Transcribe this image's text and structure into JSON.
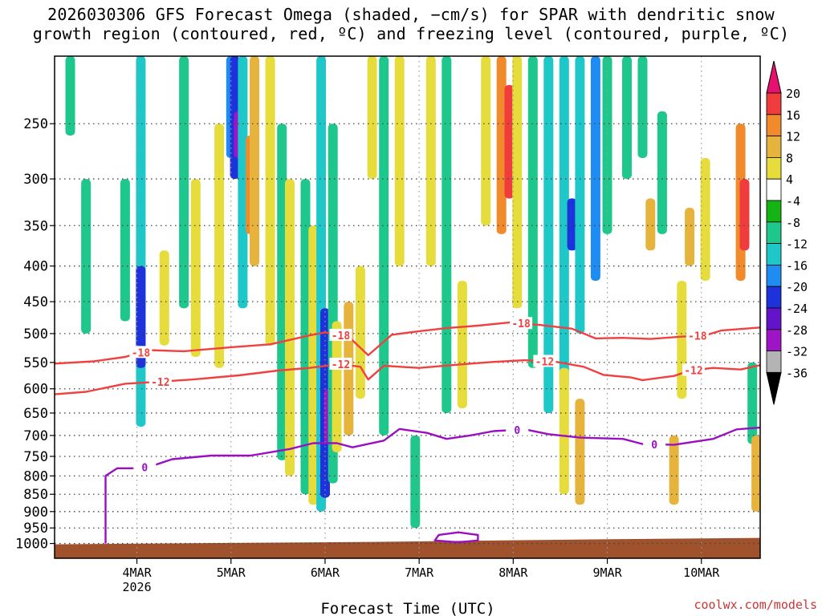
{
  "title": {
    "line1": "2026030306 GFS Forecast Omega (shaded, −cm/s) for SPAR with dendritic snow",
    "line2": "growth region (contoured, red, ºC) and freezing level (contoured, purple, ºC)"
  },
  "credit": "coolwx.com/models",
  "chart_data": {
    "type": "heatmap",
    "xlabel": "Forecast Time (UTC)",
    "ylabel": "",
    "x_range_hours": [
      0,
      180
    ],
    "x_ticks": [
      {
        "hour": 21,
        "label": "4MAR",
        "sublabel": "2026"
      },
      {
        "hour": 45,
        "label": "5MAR",
        "sublabel": ""
      },
      {
        "hour": 69,
        "label": "6MAR",
        "sublabel": ""
      },
      {
        "hour": 93,
        "label": "7MAR",
        "sublabel": ""
      },
      {
        "hour": 117,
        "label": "8MAR",
        "sublabel": ""
      },
      {
        "hour": 141,
        "label": "9MAR",
        "sublabel": ""
      },
      {
        "hour": 165,
        "label": "10MAR",
        "sublabel": ""
      }
    ],
    "y_range_hPa": [
      1050,
      200
    ],
    "y_ticks": [
      250,
      300,
      350,
      400,
      450,
      500,
      550,
      600,
      650,
      700,
      750,
      800,
      850,
      900,
      950,
      1000
    ],
    "colorbar": {
      "labels": [
        "20",
        "16",
        "12",
        "8",
        "4",
        "-4",
        "-8",
        "-12",
        "-16",
        "-20",
        "-24",
        "-28",
        "-32",
        "-36"
      ],
      "colors": [
        "#e8106e",
        "#f03c3c",
        "#f08a2a",
        "#e6b43c",
        "#e6dc3c",
        "#ffffff",
        "#14b414",
        "#1ec88c",
        "#1ec8c8",
        "#1e8cf0",
        "#1e32dc",
        "#6414c8",
        "#a014c8",
        "#b4b4b4",
        "#000000"
      ]
    },
    "omega_cells": [
      {
        "h": 22,
        "p_top": 200,
        "p_bot": 680,
        "v": -12
      },
      {
        "h": 22,
        "p_top": 400,
        "p_bot": 560,
        "v": -20
      },
      {
        "h": 18,
        "p_top": 300,
        "p_bot": 480,
        "v": -8
      },
      {
        "h": 28,
        "p_top": 380,
        "p_bot": 520,
        "v": 6
      },
      {
        "h": 33,
        "p_top": 200,
        "p_bot": 460,
        "v": -8
      },
      {
        "h": 36,
        "p_top": 300,
        "p_bot": 540,
        "v": 6
      },
      {
        "h": 42,
        "p_top": 250,
        "p_bot": 560,
        "v": 6
      },
      {
        "h": 45,
        "p_top": 200,
        "p_bot": 280,
        "v": -16
      },
      {
        "h": 46,
        "p_top": 200,
        "p_bot": 300,
        "v": -20
      },
      {
        "h": 47,
        "p_top": 240,
        "p_bot": 280,
        "v": -28
      },
      {
        "h": 48,
        "p_top": 200,
        "p_bot": 460,
        "v": -12
      },
      {
        "h": 50,
        "p_top": 260,
        "p_bot": 360,
        "v": 14
      },
      {
        "h": 51,
        "p_top": 200,
        "p_bot": 400,
        "v": 8
      },
      {
        "h": 55,
        "p_top": 200,
        "p_bot": 520,
        "v": 6
      },
      {
        "h": 58,
        "p_top": 250,
        "p_bot": 760,
        "v": -8
      },
      {
        "h": 60,
        "p_top": 300,
        "p_bot": 800,
        "v": 6
      },
      {
        "h": 64,
        "p_top": 300,
        "p_bot": 850,
        "v": -10
      },
      {
        "h": 66,
        "p_top": 350,
        "p_bot": 880,
        "v": 6
      },
      {
        "h": 68,
        "p_top": 200,
        "p_bot": 900,
        "v": -12
      },
      {
        "h": 69,
        "p_top": 460,
        "p_bot": 860,
        "v": -20
      },
      {
        "h": 70,
        "p_top": 600,
        "p_bot": 720,
        "v": -28
      },
      {
        "h": 71,
        "p_top": 250,
        "p_bot": 820,
        "v": -10
      },
      {
        "h": 72,
        "p_top": 480,
        "p_bot": 740,
        "v": 6
      },
      {
        "h": 75,
        "p_top": 450,
        "p_bot": 700,
        "v": 10
      },
      {
        "h": 78,
        "p_top": 400,
        "p_bot": 620,
        "v": 6
      },
      {
        "h": 81,
        "p_top": 200,
        "p_bot": 300,
        "v": 6
      },
      {
        "h": 84,
        "p_top": 200,
        "p_bot": 700,
        "v": -8
      },
      {
        "h": 88,
        "p_top": 200,
        "p_bot": 400,
        "v": 6
      },
      {
        "h": 92,
        "p_top": 700,
        "p_bot": 950,
        "v": -10
      },
      {
        "h": 96,
        "p_top": 200,
        "p_bot": 400,
        "v": 6
      },
      {
        "h": 100,
        "p_top": 200,
        "p_bot": 650,
        "v": -8
      },
      {
        "h": 104,
        "p_top": 420,
        "p_bot": 640,
        "v": 6
      },
      {
        "h": 110,
        "p_top": 200,
        "p_bot": 350,
        "v": 6
      },
      {
        "h": 114,
        "p_top": 200,
        "p_bot": 360,
        "v": 14
      },
      {
        "h": 116,
        "p_top": 220,
        "p_bot": 320,
        "v": 18
      },
      {
        "h": 118,
        "p_top": 200,
        "p_bot": 460,
        "v": 6
      },
      {
        "h": 122,
        "p_top": 200,
        "p_bot": 560,
        "v": -8
      },
      {
        "h": 126,
        "p_top": 200,
        "p_bot": 650,
        "v": -12
      },
      {
        "h": 130,
        "p_top": 200,
        "p_bot": 600,
        "v": -14
      },
      {
        "h": 132,
        "p_top": 320,
        "p_bot": 380,
        "v": -20
      },
      {
        "h": 134,
        "p_top": 200,
        "p_bot": 500,
        "v": -12
      },
      {
        "h": 138,
        "p_top": 200,
        "p_bot": 420,
        "v": -16
      },
      {
        "h": 141,
        "p_top": 200,
        "p_bot": 360,
        "v": -8
      },
      {
        "h": 130,
        "p_top": 560,
        "p_bot": 850,
        "v": 6
      },
      {
        "h": 134,
        "p_top": 620,
        "p_bot": 880,
        "v": 8
      },
      {
        "h": 146,
        "p_top": 200,
        "p_bot": 300,
        "v": -8
      },
      {
        "h": 150,
        "p_top": 200,
        "p_bot": 280,
        "v": -8
      },
      {
        "h": 152,
        "p_top": 320,
        "p_bot": 380,
        "v": 10
      },
      {
        "h": 155,
        "p_top": 240,
        "p_bot": 360,
        "v": -8
      },
      {
        "h": 160,
        "p_top": 420,
        "p_bot": 620,
        "v": 6
      },
      {
        "h": 158,
        "p_top": 700,
        "p_bot": 880,
        "v": 10
      },
      {
        "h": 162,
        "p_top": 330,
        "p_bot": 400,
        "v": 8
      },
      {
        "h": 166,
        "p_top": 280,
        "p_bot": 420,
        "v": 6
      },
      {
        "h": 175,
        "p_top": 250,
        "p_bot": 420,
        "v": 14
      },
      {
        "h": 176,
        "p_top": 300,
        "p_bot": 380,
        "v": 18
      },
      {
        "h": 178,
        "p_top": 550,
        "p_bot": 720,
        "v": -8
      },
      {
        "h": 179,
        "p_top": 700,
        "p_bot": 900,
        "v": 8
      },
      {
        "h": 8,
        "p_top": 300,
        "p_bot": 500,
        "v": -8
      },
      {
        "h": 4,
        "p_top": 200,
        "p_bot": 260,
        "v": -8
      }
    ],
    "contours": [
      {
        "name": "dendritic top (-18 C)",
        "label": "-18",
        "color": "#f04040",
        "points": [
          [
            0,
            552
          ],
          [
            10,
            548
          ],
          [
            18,
            540
          ],
          [
            24,
            528
          ],
          [
            33,
            530
          ],
          [
            45,
            523
          ],
          [
            55,
            518
          ],
          [
            65,
            503
          ],
          [
            69,
            498
          ],
          [
            75,
            505
          ],
          [
            80,
            537
          ],
          [
            86,
            502
          ],
          [
            93,
            496
          ],
          [
            100,
            491
          ],
          [
            108,
            487
          ],
          [
            116,
            482
          ],
          [
            124,
            486
          ],
          [
            132,
            492
          ],
          [
            138,
            508
          ],
          [
            145,
            507
          ],
          [
            152,
            509
          ],
          [
            160,
            505
          ],
          [
            166,
            503
          ],
          [
            170,
            495
          ],
          [
            180,
            490
          ]
        ],
        "label_hours": [
          22,
          73,
          119,
          164
        ]
      },
      {
        "name": "dendritic bottom (-12 C)",
        "label": "-12",
        "color": "#f04040",
        "points": [
          [
            0,
            611
          ],
          [
            8,
            606
          ],
          [
            18,
            590
          ],
          [
            27,
            586
          ],
          [
            35,
            582
          ],
          [
            47,
            574
          ],
          [
            57,
            565
          ],
          [
            65,
            560
          ],
          [
            73,
            553
          ],
          [
            78,
            558
          ],
          [
            80,
            582
          ],
          [
            84,
            556
          ],
          [
            93,
            560
          ],
          [
            103,
            554
          ],
          [
            112,
            549
          ],
          [
            120,
            546
          ],
          [
            128,
            549
          ],
          [
            135,
            558
          ],
          [
            140,
            573
          ],
          [
            147,
            578
          ],
          [
            150,
            583
          ],
          [
            158,
            575
          ],
          [
            162,
            565
          ],
          [
            168,
            560
          ],
          [
            175,
            563
          ],
          [
            180,
            555
          ]
        ],
        "label_hours": [
          27,
          73,
          125,
          163
        ]
      },
      {
        "name": "freezing level (0 C)",
        "label": "0",
        "color": "#9a10c0",
        "points": [
          [
            13,
            1000
          ],
          [
            13,
            800
          ],
          [
            16,
            780
          ],
          [
            20,
            780
          ],
          [
            24,
            777
          ],
          [
            30,
            757
          ],
          [
            40,
            748
          ],
          [
            50,
            748
          ],
          [
            60,
            732
          ],
          [
            66,
            718
          ],
          [
            72,
            718
          ],
          [
            76,
            728
          ],
          [
            84,
            712
          ],
          [
            88,
            685
          ],
          [
            95,
            694
          ],
          [
            100,
            708
          ],
          [
            106,
            700
          ],
          [
            112,
            690
          ],
          [
            120,
            686
          ],
          [
            126,
            697
          ],
          [
            134,
            705
          ],
          [
            145,
            708
          ],
          [
            150,
            720
          ],
          [
            158,
            722
          ],
          [
            168,
            708
          ],
          [
            174,
            686
          ],
          [
            180,
            682
          ]
        ],
        "label_hours": [
          23,
          118,
          153
        ]
      },
      {
        "name": "surface freezing pocket (0 C)",
        "label": "",
        "color": "#9a10c0",
        "closed": true,
        "points": [
          [
            97,
            990
          ],
          [
            98,
            972
          ],
          [
            103,
            964
          ],
          [
            108,
            972
          ],
          [
            108,
            990
          ],
          [
            103,
            996
          ]
        ],
        "label_hours": []
      }
    ]
  }
}
